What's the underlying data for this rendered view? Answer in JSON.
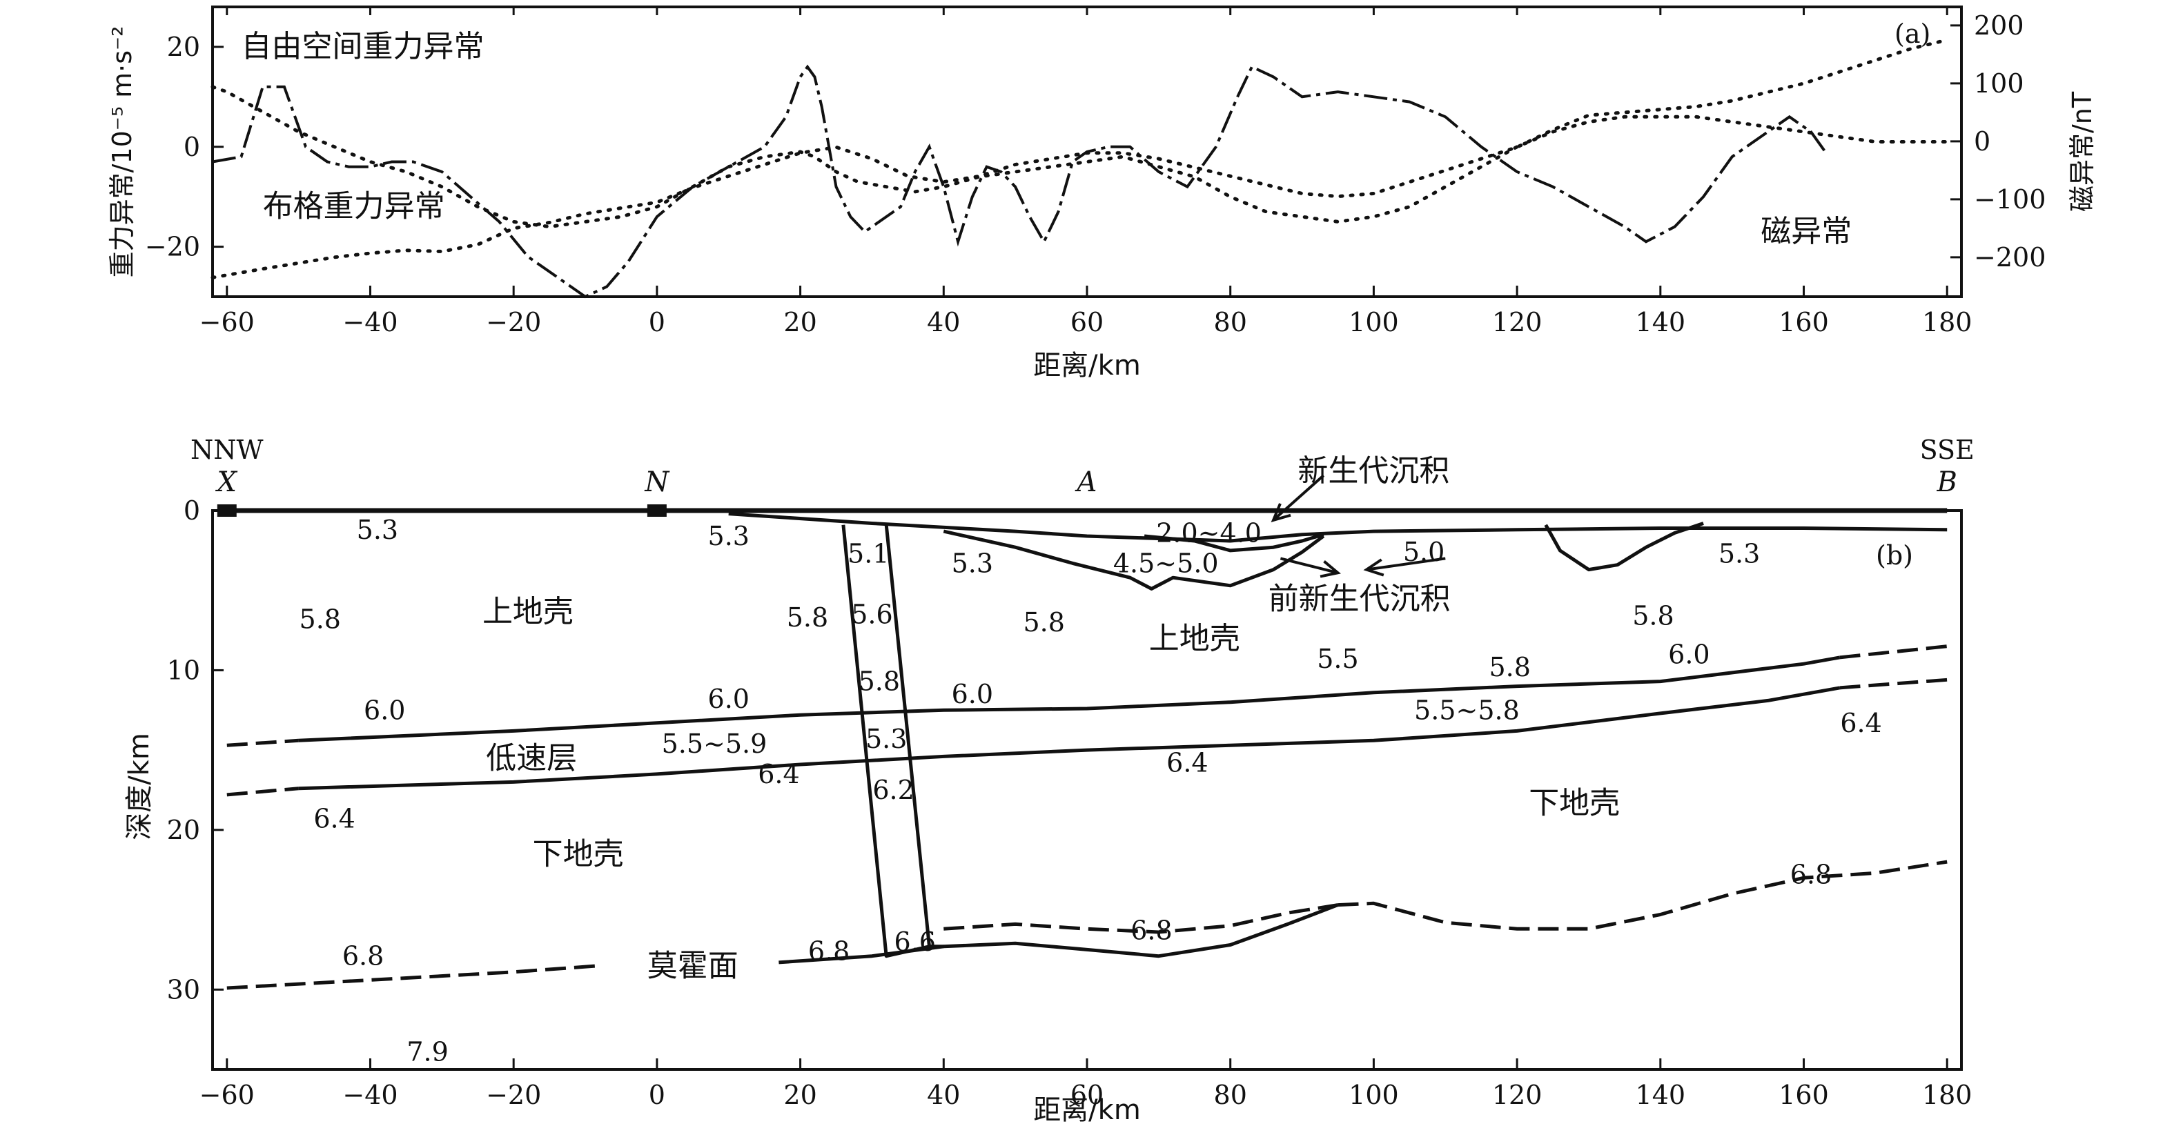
{
  "chart_data": [
    {
      "type": "line",
      "panel_label": "(a)",
      "xlabel": "距离/km",
      "ylabel_left": "重力异常/10⁻⁵ m·s⁻²",
      "ylabel_right": "磁异常/nT",
      "xlim": [
        -62,
        182
      ],
      "ylim_left": [
        -30,
        28
      ],
      "ylim_right": [
        -268,
        232
      ],
      "x_ticks": [
        -60,
        -40,
        -20,
        0,
        20,
        40,
        60,
        80,
        100,
        120,
        140,
        160,
        180
      ],
      "x_tick_labels": [
        "−60",
        "−40",
        "−20",
        "0",
        "20",
        "40",
        "60",
        "80",
        "100",
        "120",
        "140",
        "160",
        "180"
      ],
      "y_ticks_left": [
        -20,
        0,
        20
      ],
      "y_tick_labels_left": [
        "−20",
        "0",
        "20"
      ],
      "y_ticks_right": [
        -200,
        -100,
        0,
        100,
        200
      ],
      "y_tick_labels_right": [
        "−200",
        "−100",
        "0",
        "100",
        "200"
      ],
      "annotations": [
        {
          "text": "自由空间重力异常",
          "x": -58,
          "y": 20
        },
        {
          "text": "布格重力异常",
          "x": -55,
          "y": -12
        },
        {
          "text": "磁异常",
          "x": 154,
          "y": -17
        }
      ],
      "series": [
        {
          "axis": "left",
          "style": "dashed",
          "x": [
            -62,
            -58,
            -55,
            -52,
            -49,
            -46,
            -43,
            -40,
            -37,
            -34,
            -30,
            -26,
            -22,
            -18,
            -14,
            -10,
            -7,
            -4,
            0,
            5,
            10,
            15,
            18,
            20,
            21,
            22,
            23,
            24,
            25,
            27,
            29,
            32,
            34,
            36,
            38,
            40,
            42,
            44,
            46,
            48,
            50,
            52,
            54,
            56,
            58,
            60,
            63,
            66,
            70,
            74,
            78,
            81,
            83,
            86,
            90,
            95,
            100,
            105,
            110,
            115,
            120,
            125,
            130,
            135,
            138,
            142,
            146,
            150,
            155,
            158,
            161,
            163
          ],
          "y": [
            -3,
            -2,
            12,
            12,
            0,
            -3,
            -4,
            -4,
            -3,
            -3,
            -5,
            -10,
            -15,
            -22,
            -26,
            -30,
            -28,
            -23,
            -14,
            -8,
            -4,
            0,
            6,
            14,
            16,
            14,
            8,
            0,
            -8,
            -14,
            -17,
            -14,
            -12,
            -5,
            0,
            -8,
            -19,
            -10,
            -4,
            -5,
            -8,
            -14,
            -19,
            -13,
            -3,
            -1,
            0,
            0,
            -5,
            -8,
            0,
            10,
            16,
            14,
            10,
            11,
            10,
            9,
            6,
            0,
            -5,
            -8,
            -12,
            -16,
            -19,
            -16,
            -10,
            -2,
            3,
            6,
            3,
            -1
          ]
        },
        {
          "axis": "left",
          "style": "dotted",
          "x": [
            -62,
            -60,
            -55,
            -50,
            -45,
            -40,
            -35,
            -30,
            -25,
            -20,
            -15,
            -10,
            -5,
            0,
            5,
            10,
            15,
            20,
            22,
            25,
            28,
            32,
            36,
            40,
            45,
            50,
            55,
            60,
            65,
            70,
            75,
            80,
            85,
            90,
            95,
            100,
            105,
            110,
            115,
            120,
            125,
            130,
            135,
            140,
            145,
            150,
            155,
            160,
            165,
            170,
            175,
            180
          ],
          "y": [
            12,
            11,
            7,
            3,
            0,
            -3,
            -5,
            -8,
            -12,
            -15,
            -16,
            -15,
            -14,
            -12,
            -8,
            -4,
            -2,
            -1,
            -2,
            -5,
            -7,
            -8,
            -9,
            -8,
            -6,
            -5,
            -4,
            -3,
            -2,
            -4,
            -6,
            -10,
            -13,
            -14,
            -15,
            -14,
            -12,
            -8,
            -4,
            0,
            3,
            5,
            6,
            6,
            6,
            5,
            4,
            3,
            2,
            1,
            1,
            1
          ]
        },
        {
          "axis": "right",
          "style": "dotted",
          "x": [
            -62,
            -55,
            -50,
            -45,
            -40,
            -35,
            -30,
            -25,
            -20,
            -15,
            -10,
            -5,
            0,
            5,
            10,
            15,
            20,
            25,
            30,
            35,
            40,
            45,
            50,
            55,
            60,
            65,
            70,
            75,
            80,
            85,
            90,
            95,
            100,
            105,
            110,
            115,
            120,
            125,
            130,
            135,
            140,
            145,
            150,
            155,
            160,
            165,
            170,
            175,
            180
          ],
          "y": [
            -235,
            -220,
            -210,
            -200,
            -193,
            -188,
            -190,
            -178,
            -150,
            -140,
            -125,
            -115,
            -105,
            -80,
            -60,
            -40,
            -20,
            -10,
            -30,
            -60,
            -70,
            -60,
            -40,
            -30,
            -20,
            -20,
            -30,
            -45,
            -60,
            -75,
            -90,
            -95,
            -90,
            -70,
            -50,
            -30,
            -10,
            20,
            45,
            50,
            55,
            60,
            70,
            85,
            100,
            120,
            140,
            160,
            175
          ]
        }
      ]
    },
    {
      "type": "line",
      "panel_label": "(b)",
      "xlabel": "距离/km",
      "ylabel": "深度/km",
      "xlim": [
        -62,
        182
      ],
      "ylim": [
        35,
        0
      ],
      "x_ticks": [
        -60,
        -40,
        -20,
        0,
        20,
        40,
        60,
        80,
        100,
        120,
        140,
        160,
        180
      ],
      "x_tick_labels": [
        "−60",
        "−40",
        "−20",
        "0",
        "20",
        "40",
        "60",
        "80",
        "100",
        "120",
        "140",
        "160",
        "180"
      ],
      "y_ticks": [
        0,
        10,
        20,
        30
      ],
      "y_tick_labels": [
        "0",
        "10",
        "20",
        "30"
      ],
      "end_labels": [
        {
          "dir": "NNW",
          "point": "X",
          "x": -60
        },
        {
          "dir": "",
          "point": "N",
          "x": 0
        },
        {
          "dir": "",
          "point": "A",
          "x": 60
        },
        {
          "dir": "SSE",
          "point": "B",
          "x": 180
        }
      ],
      "annotations": [
        {
          "text": "新生代沉积",
          "x": 100,
          "y": -2.5
        },
        {
          "text": "前新生代沉积",
          "x": 98,
          "y": 5.5
        },
        {
          "text": "上地壳",
          "x": -18,
          "y": 6.3
        },
        {
          "text": "上地壳",
          "x": 75,
          "y": 8
        },
        {
          "text": "低速层",
          "x": -17.5,
          "y": 15.5
        },
        {
          "text": "下地壳",
          "x": -11,
          "y": 21.5
        },
        {
          "text": "下地壳",
          "x": 128,
          "y": 18.3
        },
        {
          "text": "莫霍面",
          "x": 5,
          "y": 28.5
        }
      ],
      "velocity_labels": [
        {
          "text": "5.3",
          "x": -39,
          "y": 1.2
        },
        {
          "text": "5.3",
          "x": 10,
          "y": 1.6
        },
        {
          "text": "5.1",
          "x": 29.5,
          "y": 2.7
        },
        {
          "text": "5.3",
          "x": 44,
          "y": 3.3
        },
        {
          "text": "2.0~4.0",
          "x": 77,
          "y": 1.4
        },
        {
          "text": "4.5~5.0",
          "x": 71,
          "y": 3.3
        },
        {
          "text": "5.0",
          "x": 107,
          "y": 2.6
        },
        {
          "text": "5.3",
          "x": 151,
          "y": 2.7
        },
        {
          "text": "5.8",
          "x": -47,
          "y": 6.8
        },
        {
          "text": "5.8",
          "x": 21,
          "y": 6.7
        },
        {
          "text": "5.6",
          "x": 30,
          "y": 6.5
        },
        {
          "text": "5.8",
          "x": 54,
          "y": 7
        },
        {
          "text": "5.8",
          "x": 139,
          "y": 6.6
        },
        {
          "text": "5.5",
          "x": 95,
          "y": 9.3
        },
        {
          "text": "5.8",
          "x": 119,
          "y": 9.8
        },
        {
          "text": "6.0",
          "x": 144,
          "y": 9
        },
        {
          "text": "5.8",
          "x": 31,
          "y": 10.7
        },
        {
          "text": "6.0",
          "x": -38,
          "y": 12.5
        },
        {
          "text": "6.0",
          "x": 10,
          "y": 11.8
        },
        {
          "text": "6.0",
          "x": 44,
          "y": 11.5
        },
        {
          "text": "5.5~5.9",
          "x": 8,
          "y": 14.6
        },
        {
          "text": "5.3",
          "x": 32,
          "y": 14.3
        },
        {
          "text": "5.5~5.8",
          "x": 113,
          "y": 12.5
        },
        {
          "text": "6.4",
          "x": 168,
          "y": 13.3
        },
        {
          "text": "6.4",
          "x": 17,
          "y": 16.5
        },
        {
          "text": "6.2",
          "x": 33,
          "y": 17.5
        },
        {
          "text": "6.4",
          "x": 74,
          "y": 15.8
        },
        {
          "text": "6.4",
          "x": -45,
          "y": 19.3
        },
        {
          "text": "6.8",
          "x": 161,
          "y": 22.8
        },
        {
          "text": "6.8",
          "x": 69,
          "y": 26.3
        },
        {
          "text": "6.6",
          "x": 36,
          "y": 27
        },
        {
          "text": "6.8",
          "x": 24,
          "y": 27.6
        },
        {
          "text": "6.8",
          "x": -41,
          "y": 27.9
        },
        {
          "text": "7.9",
          "x": -32,
          "y": 33.9
        }
      ],
      "series": [
        {
          "style": "solid",
          "x": [
            -60,
            180
          ],
          "y": [
            0,
            0
          ]
        },
        {
          "style": "solid",
          "x": [
            10,
            30,
            50,
            60,
            80,
            90,
            100,
            120,
            140,
            160,
            180
          ],
          "y": [
            0.2,
            0.8,
            1.3,
            1.6,
            1.9,
            1.5,
            1.3,
            1.2,
            1.1,
            1.1,
            1.2
          ]
        },
        {
          "style": "solid",
          "x": [
            40,
            50,
            58,
            66,
            69,
            72,
            80,
            86,
            90,
            93
          ],
          "y": [
            1.3,
            2.3,
            3.3,
            4.2,
            4.9,
            4.2,
            4.7,
            3.7,
            2.6,
            1.6
          ]
        },
        {
          "style": "solid",
          "x": [
            68,
            75,
            80,
            86,
            90,
            93
          ],
          "y": [
            1.6,
            1.9,
            2.5,
            2.3,
            1.9,
            1.5
          ]
        },
        {
          "style": "solid",
          "x": [
            124,
            126,
            130,
            134,
            138,
            142,
            146
          ],
          "y": [
            0.9,
            2.5,
            3.7,
            3.4,
            2.3,
            1.4,
            0.8
          ]
        },
        {
          "style": "dashed",
          "x": [
            -60,
            -50
          ],
          "y": [
            14.7,
            14.4
          ]
        },
        {
          "style": "solid",
          "x": [
            -50,
            -20,
            0,
            20,
            40,
            60,
            80,
            100,
            120,
            140,
            160,
            165
          ],
          "y": [
            14.4,
            13.8,
            13.3,
            12.8,
            12.5,
            12.4,
            12,
            11.4,
            11,
            10.7,
            9.6,
            9.2
          ]
        },
        {
          "style": "dashed",
          "x": [
            165,
            180
          ],
          "y": [
            9.2,
            8.5
          ]
        },
        {
          "style": "dashed",
          "x": [
            -60,
            -50
          ],
          "y": [
            17.8,
            17.4
          ]
        },
        {
          "style": "solid",
          "x": [
            -50,
            -20,
            0,
            20,
            40,
            60,
            80,
            100,
            120,
            140,
            155,
            165
          ],
          "y": [
            17.4,
            17,
            16.5,
            15.9,
            15.4,
            15,
            14.7,
            14.4,
            13.8,
            12.7,
            11.9,
            11.1
          ]
        },
        {
          "style": "dashed",
          "x": [
            165,
            180
          ],
          "y": [
            11.1,
            10.6
          ]
        },
        {
          "style": "dashed",
          "x": [
            -60,
            -40,
            -20,
            -8
          ],
          "y": [
            29.9,
            29.4,
            28.9,
            28.5
          ]
        },
        {
          "style": "solid",
          "x": [
            17,
            30,
            40,
            50,
            60,
            70,
            80,
            88,
            95
          ],
          "y": [
            28.3,
            27.9,
            27.3,
            27.1,
            27.5,
            27.9,
            27.2,
            25.9,
            24.7
          ]
        },
        {
          "style": "dashed",
          "x": [
            40,
            50,
            60,
            70,
            80,
            88,
            95
          ],
          "y": [
            26.2,
            25.9,
            26.2,
            26.4,
            26,
            25.2,
            24.7
          ]
        },
        {
          "style": "dashed",
          "x": [
            95,
            100,
            110,
            120,
            130,
            140,
            150,
            160,
            170,
            180
          ],
          "y": [
            24.7,
            24.6,
            25.8,
            26.2,
            26.2,
            25.3,
            24,
            23,
            22.7,
            22
          ]
        },
        {
          "style": "solid",
          "x": [
            26,
            32,
            38
          ],
          "y": [
            0.9,
            27.9,
            27.3
          ]
        },
        {
          "style": "solid",
          "x": [
            32,
            38,
            40
          ],
          "y": [
            0.9,
            27.3,
            27.3
          ]
        }
      ]
    }
  ]
}
